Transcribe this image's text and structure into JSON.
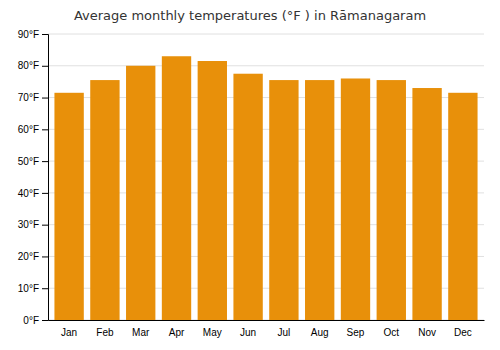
{
  "chart_data": {
    "type": "bar",
    "title": "Average monthly temperatures (°F ) in Rāmanagaram",
    "categories": [
      "Jan",
      "Feb",
      "Mar",
      "Apr",
      "May",
      "Jun",
      "Jul",
      "Aug",
      "Sep",
      "Oct",
      "Nov",
      "Dec"
    ],
    "values": [
      71.5,
      75.5,
      80.0,
      83.0,
      81.5,
      77.5,
      75.5,
      75.5,
      76.0,
      75.5,
      73.0,
      71.5
    ],
    "color": "#E8900A",
    "ylim": [
      0,
      90
    ],
    "yticks": [
      {
        "value": 0,
        "label": "0°F"
      },
      {
        "value": 10,
        "label": "10°F"
      },
      {
        "value": 20,
        "label": "20°F"
      },
      {
        "value": 30,
        "label": "30°F"
      },
      {
        "value": 40,
        "label": "40°F"
      },
      {
        "value": 50,
        "label": "50°F"
      },
      {
        "value": 60,
        "label": "60°F"
      },
      {
        "value": 70,
        "label": "70°F"
      },
      {
        "value": 80,
        "label": "80°F"
      },
      {
        "value": 90,
        "label": "90°F"
      }
    ],
    "grid": true
  }
}
